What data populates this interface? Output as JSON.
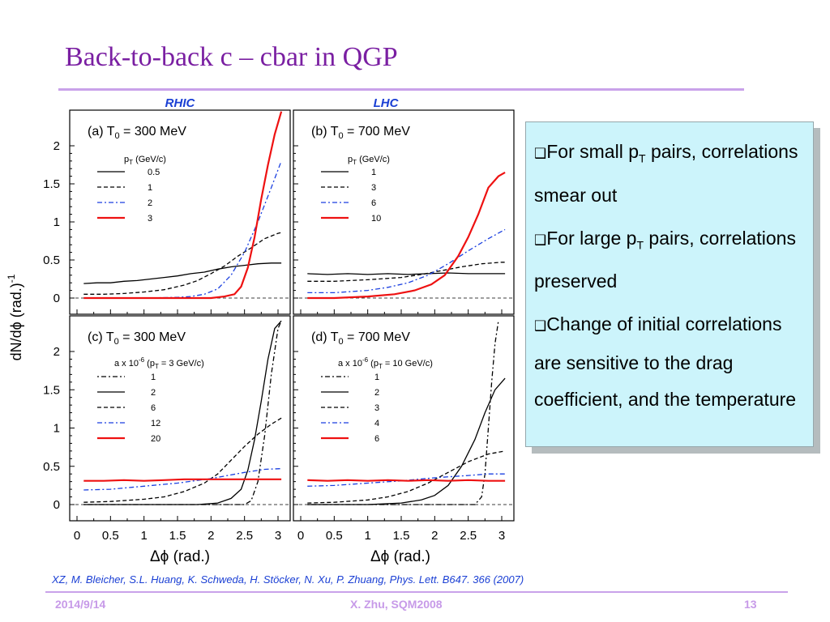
{
  "slide": {
    "title": "Back-to-back c – cbar in QGP",
    "citation": "XZ, M. Bleicher, S.L. Huang, K. Schweda, H. Stöcker, N. Xu, P. Zhuang, Phys. Lett. B647. 366 (2007)",
    "footer": {
      "date": "2014/9/14",
      "author": "X. Zhu, SQM2008",
      "page": "13"
    }
  },
  "notes": {
    "checkbox_icon": "checkbox-icon",
    "items": [
      {
        "pre": "For small p",
        "sub": "T",
        "post": " pairs, correlations smear out"
      },
      {
        "pre": "For large p",
        "sub": "T",
        "post": " pairs, correlations preserved"
      },
      {
        "text": "Change of initial correlations are sensitive to the drag coefficient, and the temperature"
      }
    ]
  },
  "figure": {
    "column_labels": [
      "RHIC",
      "LHC"
    ],
    "ylabel": "dN/dϕ (rad.)",
    "ylabel_exp": "-1",
    "xlabel": "Δϕ (rad.)",
    "colors": {
      "black": "#000000",
      "blue": "#1a3fe0",
      "red": "#ee1111",
      "column_label": "#1a3fd4"
    }
  },
  "chart_data": [
    {
      "type": "line",
      "panel": "(a)",
      "title_pre": "(a) T",
      "title_sub": "0",
      "title_post": " = 300 MeV",
      "legend_title_pre": "p",
      "legend_title_sub": "T",
      "legend_title_post": " (GeV/c)",
      "xlim": [
        0,
        3.14
      ],
      "ylim": [
        -0.1,
        2.4
      ],
      "xticks": [
        "0",
        "0.5",
        "1",
        "1.5",
        "2",
        "2.5",
        "3"
      ],
      "yticks": [
        "0",
        "0.5",
        "1",
        "1.5",
        "2"
      ],
      "series": [
        {
          "name": "0.5",
          "style": "solid",
          "color": "black",
          "x": [
            0.1,
            0.3,
            0.5,
            0.7,
            0.9,
            1.1,
            1.3,
            1.5,
            1.7,
            1.9,
            2.1,
            2.3,
            2.5,
            2.7,
            2.9,
            3.05
          ],
          "y": [
            0.19,
            0.2,
            0.2,
            0.22,
            0.23,
            0.25,
            0.27,
            0.29,
            0.32,
            0.34,
            0.38,
            0.41,
            0.43,
            0.45,
            0.46,
            0.46
          ]
        },
        {
          "name": "1",
          "style": "dashed",
          "color": "black",
          "x": [
            0.1,
            0.4,
            0.7,
            1.0,
            1.3,
            1.6,
            1.8,
            2.0,
            2.2,
            2.4,
            2.6,
            2.8,
            3.0,
            3.05
          ],
          "y": [
            0.05,
            0.05,
            0.06,
            0.08,
            0.11,
            0.17,
            0.23,
            0.32,
            0.42,
            0.55,
            0.66,
            0.78,
            0.85,
            0.86
          ]
        },
        {
          "name": "2",
          "style": "dashdot",
          "color": "blue",
          "x": [
            0.1,
            0.5,
            1.0,
            1.5,
            1.7,
            1.9,
            2.1,
            2.3,
            2.5,
            2.7,
            2.9,
            3.05
          ],
          "y": [
            0.0,
            0.0,
            0.0,
            0.01,
            0.02,
            0.05,
            0.12,
            0.3,
            0.6,
            1.0,
            1.45,
            1.8
          ]
        },
        {
          "name": "3",
          "style": "solid",
          "color": "red",
          "x": [
            0.1,
            0.5,
            1.0,
            1.5,
            2.0,
            2.2,
            2.35,
            2.45,
            2.55,
            2.65,
            2.75,
            2.85,
            2.95,
            3.05
          ],
          "y": [
            0.0,
            0.0,
            0.0,
            0.0,
            0.0,
            0.02,
            0.05,
            0.15,
            0.4,
            0.8,
            1.3,
            1.75,
            2.15,
            2.45
          ]
        }
      ]
    },
    {
      "type": "line",
      "panel": "(b)",
      "title_pre": "(b) T",
      "title_sub": "0",
      "title_post": " = 700 MeV",
      "legend_title_pre": "p",
      "legend_title_sub": "T",
      "legend_title_post": " (GeV/c)",
      "xlim": [
        0,
        3.14
      ],
      "ylim": [
        -0.1,
        2.4
      ],
      "xticks": [
        "0",
        "0.5",
        "1",
        "1.5",
        "2",
        "2.5",
        "3"
      ],
      "yticks": [
        "0",
        "0.5",
        "1",
        "1.5",
        "2"
      ],
      "series": [
        {
          "name": "1",
          "style": "solid",
          "color": "black",
          "x": [
            0.1,
            0.4,
            0.7,
            1.0,
            1.3,
            1.6,
            1.9,
            2.2,
            2.5,
            2.8,
            3.05
          ],
          "y": [
            0.32,
            0.31,
            0.32,
            0.31,
            0.32,
            0.31,
            0.32,
            0.33,
            0.32,
            0.32,
            0.32
          ]
        },
        {
          "name": "3",
          "style": "dashed",
          "color": "black",
          "x": [
            0.1,
            0.5,
            1.0,
            1.5,
            1.8,
            2.1,
            2.4,
            2.7,
            3.0,
            3.05
          ],
          "y": [
            0.22,
            0.22,
            0.24,
            0.27,
            0.31,
            0.36,
            0.41,
            0.45,
            0.47,
            0.47
          ]
        },
        {
          "name": "6",
          "style": "dashdot",
          "color": "blue",
          "x": [
            0.1,
            0.5,
            1.0,
            1.3,
            1.6,
            1.9,
            2.2,
            2.5,
            2.8,
            3.05
          ],
          "y": [
            0.07,
            0.07,
            0.1,
            0.14,
            0.2,
            0.3,
            0.45,
            0.62,
            0.78,
            0.9
          ]
        },
        {
          "name": "10",
          "style": "solid",
          "color": "red",
          "x": [
            0.1,
            0.5,
            1.0,
            1.4,
            1.7,
            1.95,
            2.15,
            2.35,
            2.5,
            2.65,
            2.8,
            2.95,
            3.05
          ],
          "y": [
            0.0,
            0.0,
            0.02,
            0.05,
            0.1,
            0.18,
            0.3,
            0.55,
            0.8,
            1.1,
            1.45,
            1.6,
            1.65
          ]
        }
      ]
    },
    {
      "type": "line",
      "panel": "(c)",
      "title_pre": "(c) T",
      "title_sub": "0",
      "title_post": " = 300 MeV",
      "legend_title_pre": "a x 10",
      "legend_title_sup": "-6",
      "legend_title_post": "  (p",
      "legend_title_sub": "T",
      "legend_title_end": " = 3 GeV/c)",
      "xlim": [
        0,
        3.14
      ],
      "ylim": [
        -0.1,
        2.4
      ],
      "xticks": [
        "0",
        "0.5",
        "1",
        "1.5",
        "2",
        "2.5",
        "3"
      ],
      "yticks": [
        "0",
        "0.5",
        "1",
        "1.5",
        "2"
      ],
      "series": [
        {
          "name": "1",
          "style": "dotdash",
          "color": "black",
          "x": [
            0.1,
            1.0,
            2.0,
            2.5,
            2.6,
            2.7,
            2.8,
            2.9,
            3.0,
            3.05
          ],
          "y": [
            0.0,
            0.0,
            0.0,
            0.0,
            0.05,
            0.3,
            0.9,
            1.7,
            2.3,
            2.4
          ]
        },
        {
          "name": "2",
          "style": "solid",
          "color": "black",
          "x": [
            0.1,
            1.0,
            1.8,
            2.1,
            2.3,
            2.45,
            2.55,
            2.65,
            2.75,
            2.85,
            2.95,
            3.05
          ],
          "y": [
            0.0,
            0.0,
            0.0,
            0.02,
            0.08,
            0.2,
            0.45,
            0.85,
            1.35,
            1.9,
            2.3,
            2.4
          ]
        },
        {
          "name": "6",
          "style": "dashed",
          "color": "black",
          "x": [
            0.1,
            0.5,
            1.0,
            1.3,
            1.6,
            1.9,
            2.1,
            2.3,
            2.5,
            2.7,
            2.9,
            3.05
          ],
          "y": [
            0.03,
            0.04,
            0.07,
            0.1,
            0.17,
            0.28,
            0.4,
            0.58,
            0.76,
            0.92,
            1.05,
            1.13
          ]
        },
        {
          "name": "12",
          "style": "dashdot",
          "color": "blue",
          "x": [
            0.1,
            0.5,
            1.0,
            1.5,
            2.0,
            2.5,
            2.8,
            3.05
          ],
          "y": [
            0.19,
            0.2,
            0.24,
            0.28,
            0.34,
            0.42,
            0.46,
            0.47
          ]
        },
        {
          "name": "20",
          "style": "solid",
          "color": "red",
          "x": [
            0.1,
            0.4,
            0.7,
            1.0,
            1.3,
            1.6,
            1.9,
            2.2,
            2.5,
            2.8,
            3.05
          ],
          "y": [
            0.31,
            0.31,
            0.32,
            0.31,
            0.32,
            0.33,
            0.33,
            0.33,
            0.33,
            0.33,
            0.33
          ]
        }
      ]
    },
    {
      "type": "line",
      "panel": "(d)",
      "title_pre": "(d) T",
      "title_sub": "0",
      "title_post": " = 700 MeV",
      "legend_title_pre": "a x 10",
      "legend_title_sup": "-6",
      "legend_title_post": "  (p",
      "legend_title_sub": "T",
      "legend_title_end": " = 10 GeV/c)",
      "xlim": [
        0,
        3.14
      ],
      "ylim": [
        -0.1,
        2.4
      ],
      "xticks": [
        "0",
        "0.5",
        "1",
        "1.5",
        "2",
        "2.5",
        "3"
      ],
      "yticks": [
        "0",
        "0.5",
        "1",
        "1.5",
        "2"
      ],
      "series": [
        {
          "name": "1",
          "style": "dotdash",
          "color": "black",
          "x": [
            0.1,
            1.0,
            2.0,
            2.6,
            2.7,
            2.75,
            2.8,
            2.85,
            2.9,
            2.95
          ],
          "y": [
            0.0,
            0.0,
            0.0,
            0.0,
            0.1,
            0.4,
            1.0,
            1.6,
            2.1,
            2.4
          ]
        },
        {
          "name": "2",
          "style": "solid",
          "color": "black",
          "x": [
            0.1,
            1.0,
            1.5,
            1.8,
            2.0,
            2.2,
            2.4,
            2.6,
            2.75,
            2.9,
            3.05
          ],
          "y": [
            0.0,
            0.0,
            0.02,
            0.06,
            0.12,
            0.25,
            0.5,
            0.85,
            1.2,
            1.5,
            1.65
          ]
        },
        {
          "name": "3",
          "style": "dashed",
          "color": "black",
          "x": [
            0.1,
            0.5,
            1.0,
            1.3,
            1.6,
            1.9,
            2.2,
            2.5,
            2.8,
            3.05
          ],
          "y": [
            0.02,
            0.03,
            0.06,
            0.1,
            0.17,
            0.28,
            0.42,
            0.56,
            0.66,
            0.7
          ]
        },
        {
          "name": "4",
          "style": "dashdot",
          "color": "blue",
          "x": [
            0.1,
            0.5,
            1.0,
            1.5,
            2.0,
            2.5,
            2.8,
            3.05
          ],
          "y": [
            0.24,
            0.25,
            0.28,
            0.31,
            0.35,
            0.38,
            0.4,
            0.4
          ]
        },
        {
          "name": "6",
          "style": "solid",
          "color": "red",
          "x": [
            0.1,
            0.4,
            0.7,
            1.0,
            1.3,
            1.6,
            1.9,
            2.2,
            2.5,
            2.8,
            3.05
          ],
          "y": [
            0.32,
            0.31,
            0.32,
            0.31,
            0.32,
            0.31,
            0.32,
            0.31,
            0.32,
            0.31,
            0.31
          ]
        }
      ]
    }
  ]
}
